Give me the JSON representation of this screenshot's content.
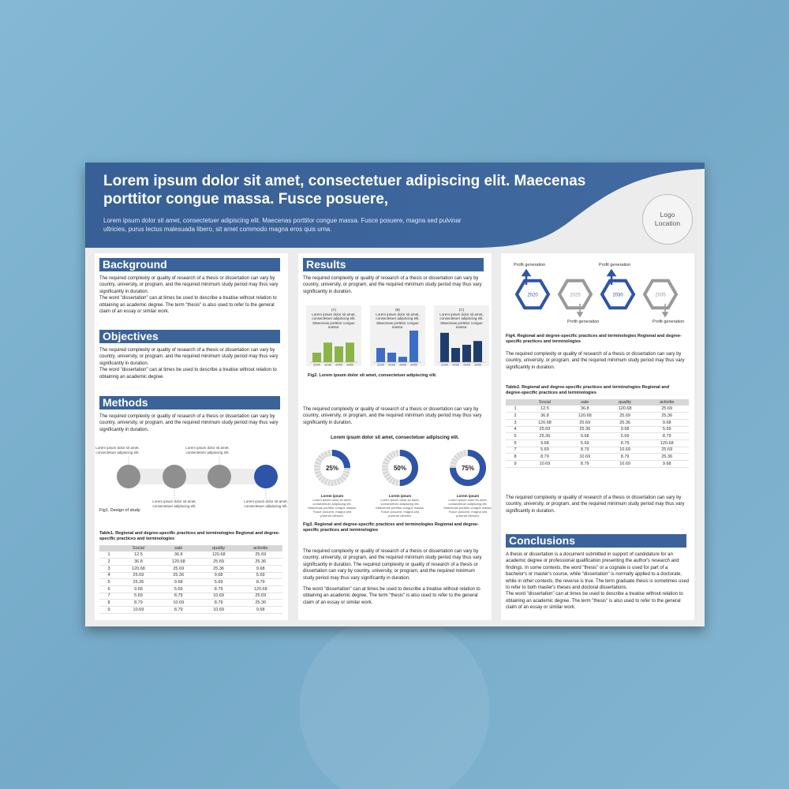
{
  "header": {
    "title": "Lorem ipsum dolor sit amet, consectetuer adipiscing elit. Maecenas porttitor congue massa. Fusce posuere,",
    "subtitle": "Lorem ipsum dolor sit amet, consectetuer adipiscing elit. Maecenas porttitor congue massa. Fusce posuere, magna sed pulvinar ultricies, purus lectus malesuada libero, sit amet commodo magna eros quis urna.",
    "logo": "Logo Location"
  },
  "colors": {
    "primary": "#3a639a",
    "green": "#8ab544",
    "blue": "#3c6ec4",
    "navy": "#1f3c6e",
    "gray": "#9a9a9a"
  },
  "background": {
    "title": "Background",
    "text": "The required complexity or quality of research of a thesis or dissertation can vary by country, university, or program, and the required minimum study period may thus vary significantly in duration.\nThe word \"dissertation\" can at times be used to describe a treatise without relation to obtaining an academic degree. The term \"thesis\" is also used to refer to the general claim of an essay or similar work."
  },
  "objectives": {
    "title": "Objectives",
    "text": "The required complexity or quality of research of a thesis or dissertation can vary by country, university, or program, and the required minimum study period may thus vary significantly in duration.\nThe word \"dissertation\" can at times be used to describe a treatise without relation to obtaining an academic degree."
  },
  "methods": {
    "title": "Methods",
    "text": "The required complexity or quality of research of a thesis or dissertation can vary by country, university, or program, and the required minimum study period may thus vary significantly in duration.",
    "step_labels": [
      "Lorem ipsum dolor sit amet, consectetuer adipiscing elit.",
      "Lorem ipsum dolor sit amet, consectetuer adipiscing elit.",
      "Lorem ipsum dolor sit amet, consectetuer adipiscing elit.",
      "Lorem ipsum dolor sit amet, consectetuer adipiscing elit."
    ],
    "fig_caption": "Fig1. Design of study",
    "table_caption": "Table1. Regional and degree-specific practices and terminologies Regional and degree-specific practices and terminologies"
  },
  "table1": {
    "headers": [
      "",
      "Social",
      "sale",
      "quality",
      "activitie"
    ],
    "rows": [
      [
        "1",
        "12.5",
        "36.8",
        "120.68",
        "25.69"
      ],
      [
        "2",
        "36.8",
        "120.68",
        "25.69",
        "25.36"
      ],
      [
        "3",
        "120.68",
        "25.69",
        "25.36",
        "9.68"
      ],
      [
        "4",
        "25.69",
        "25.36",
        "9.68",
        "5.69"
      ],
      [
        "5",
        "25.36",
        "9.68",
        "5.69",
        "8.79"
      ],
      [
        "6",
        "9.68",
        "5.69",
        "8.79",
        "120.68"
      ],
      [
        "7",
        "5.69",
        "8.79",
        "10.69",
        "25.69"
      ],
      [
        "8",
        "8.79",
        "10.69",
        "8.79",
        "25.36"
      ],
      [
        "9",
        "10.69",
        "8.79",
        "10.69",
        "9.68"
      ]
    ]
  },
  "results": {
    "title": "Results",
    "text1": "The required complexity or quality of research of a thesis or dissertation can vary by country, university, or program, and the required minimum study period may thus vary significantly in duration.",
    "fig2_caption": "Fig2. Lorem ipsum dolor sit amet, consectetuer adipiscing elit.",
    "text2": "The required complexity or quality of research of a thesis or dissertation can vary by country, university, or program, and the required minimum study period may thus vary significantly in duration.",
    "donut_title": "Lorem ipsum dolor sit amet, consectetuer adipiscing elit.",
    "donuts": [
      {
        "label": "25%",
        "value": 25,
        "name": "Lorem ipsum",
        "desc": "Lorem ipsum dolor sit amet, consectetuer adipiscing elit. Maecenas porttitor congue massa. Fusce posuere, magna sed pulvinar ultricies."
      },
      {
        "label": "50%",
        "value": 50,
        "name": "Lorem ipsum",
        "desc": "Lorem ipsum dolor sit amet, consectetuer adipiscing elit. Maecenas porttitor congue massa. Fusce posuere, magna sed pulvinar ultricies."
      },
      {
        "label": "75%",
        "value": 75,
        "name": "Lorem ipsum",
        "desc": "Lorem ipsum dolor sit amet, consectetuer adipiscing elit. Maecenas porttitor congue massa. Fusce posuere, magna sed pulvinar ultricies."
      }
    ],
    "fig3_caption": "Fig3. Regional and degree-specific practices and terminologies Regional and degree-specific practices and terminologies",
    "text3": "The required complexity or quality of research of a thesis or dissertation can vary by country, university, or program, and the required minimum study period may thus vary significantly in duration. The required complexity or quality of research of a thesis or dissertation can vary by country, university, or program, and the required minimum study period may thus vary significantly in duration.",
    "text4": "The word \"dissertation\" can at times be used to describe a treatise without relation to obtaining an academic degree. The term \"thesis\" is also used to refer to the general claim of an essay or similar work."
  },
  "chart_data": [
    {
      "type": "bar",
      "label": "(A)",
      "desc": "Lorem ipsum dolor sit amet, consectetuer adipiscing elit. Maecenas porttitor congue massa.",
      "categories": [
        "2025",
        "2035",
        "2045",
        "2055"
      ],
      "values": [
        0.3,
        0.62,
        0.5,
        0.62
      ],
      "color": "#8ab544"
    },
    {
      "type": "bar",
      "label": "(B)",
      "desc": "Lorem ipsum dolor sit amet, consectetuer adipiscing elit. Maecenas porttitor congue massa.",
      "categories": [
        "2025",
        "2035",
        "2045",
        "2055"
      ],
      "values": [
        0.45,
        0.3,
        0.17,
        1.0
      ],
      "color": "#3c6ec4"
    },
    {
      "type": "bar",
      "label": "(C)",
      "desc": "Lorem ipsum dolor sit amet, consectetuer adipiscing elit. Maecenas porttitor congue massa.",
      "categories": [
        "2025",
        "2035",
        "2045",
        "2055"
      ],
      "values": [
        0.93,
        0.45,
        0.55,
        0.67
      ],
      "color": "#1f3c6e"
    }
  ],
  "timeline": {
    "years": [
      "2020",
      "2025",
      "2030",
      "2035"
    ],
    "labels": [
      "Profit generation",
      "Profit generation",
      "Profit generation",
      "Profit generation"
    ],
    "fig4_caption": "Fig4. Regional and degree-specific practices and terminologies Regional and degree-specific practices and terminologies",
    "text": "The required complexity or quality of research of a thesis or dissertation can vary by country, university, or program, and the required minimum study period may thus vary significantly in duration.",
    "table_caption": "Table2. Regional and degree-specific practices and terminologies Regional and degree-specific practices and terminologies",
    "text_after": "The required complexity or quality of research of a thesis or dissertation can vary by country, university, or program, and the required minimum study period may thus vary significantly in duration."
  },
  "conclusions": {
    "title": "Conclusions",
    "text": "A thesis or dissertation is a document submitted in support of candidature for an academic degree or professional qualification presenting the author's research and findings. In some contexts, the word \"thesis\" or a cognate is used for part of a bachelor's or master's course, while \"dissertation\" is normally applied to a doctorate, while in other contexts, the reverse is true. The term graduate thesis is sometimes used to refer to both master's theses and doctoral dissertations.\nThe word \"dissertation\" can at times be used to describe a treatise without relation to obtaining an academic degree. The term \"thesis\" is also used to refer to the general claim of an essay or similar work."
  }
}
